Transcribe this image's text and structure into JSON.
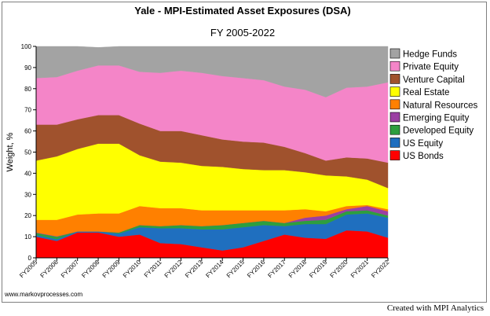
{
  "chart_data": {
    "type": "area",
    "stacked": true,
    "title": "Yale - MPI-Estimated Asset Exposures (DSA)",
    "subtitle": "FY 2005-2022",
    "ylabel": "Weight, %",
    "xlabel": "",
    "ylim": [
      0,
      100
    ],
    "yticks": [
      0,
      10,
      20,
      30,
      40,
      50,
      60,
      70,
      80,
      90,
      100
    ],
    "grid": false,
    "legend_position": "right",
    "categories": [
      "FY2005",
      "FY2006",
      "FY2007",
      "FY2008",
      "FY2009",
      "FY2010",
      "FY2011",
      "FY2012",
      "FY2013",
      "FY2014",
      "FY2015",
      "FY2016",
      "FY2017",
      "FY2018",
      "FY2019",
      "FY2020",
      "FY2021",
      "FY2022"
    ],
    "series": [
      {
        "name": "US Bonds",
        "color": "#ff0000",
        "values": [
          10,
          8,
          12,
          12,
          10,
          11,
          7,
          6.5,
          5,
          3.5,
          5,
          8,
          11,
          9.5,
          9,
          13,
          12.5,
          9.5
        ]
      },
      {
        "name": "US Equity",
        "color": "#1f6fbf",
        "values": [
          0.8,
          0.8,
          0.5,
          0.5,
          1.5,
          3.5,
          7,
          7.5,
          8.5,
          10,
          9.5,
          7.5,
          4,
          6.5,
          7,
          7.5,
          8.5,
          9.5
        ]
      },
      {
        "name": "Developed Equity",
        "color": "#2e9e3e",
        "values": [
          1,
          1.2,
          0,
          0,
          0.5,
          1,
          1,
          1.5,
          1.5,
          2,
          2,
          2,
          1.5,
          1.5,
          2,
          1.5,
          1.5,
          1
        ]
      },
      {
        "name": "Emerging Equity",
        "color": "#9b3fa3",
        "values": [
          0.2,
          0.2,
          0,
          0,
          0,
          0,
          0,
          0,
          0,
          0,
          0,
          0,
          0,
          1.5,
          2,
          1,
          2,
          2
        ]
      },
      {
        "name": "Natural Resources",
        "color": "#ff8000",
        "values": [
          6,
          7.8,
          8,
          8.5,
          9,
          9,
          8.5,
          8,
          7.5,
          7,
          6,
          5,
          6,
          4,
          2,
          1.5,
          0.5,
          1
        ]
      },
      {
        "name": "Real Estate",
        "color": "#ffff00",
        "values": [
          28,
          30,
          31,
          33,
          33,
          24,
          22,
          21.5,
          21,
          20.5,
          19.5,
          19,
          19,
          17.5,
          17,
          14,
          12,
          10
        ]
      },
      {
        "name": "Venture Capital",
        "color": "#a0522d",
        "values": [
          17,
          15,
          14,
          13.5,
          13.5,
          15,
          14.5,
          15,
          14.5,
          13,
          13,
          13,
          11,
          9,
          7,
          9,
          10,
          12
        ]
      },
      {
        "name": "Private Equity",
        "color": "#f485c8",
        "values": [
          22,
          22.5,
          23,
          23.5,
          23.5,
          24.5,
          27.5,
          28.5,
          29.5,
          30,
          30,
          29.5,
          28.5,
          30,
          30,
          33,
          34,
          38
        ]
      },
      {
        "name": "Hedge Funds",
        "color": "#a3a3a3",
        "values": [
          15,
          14.5,
          11.5,
          8.5,
          9,
          12,
          12.5,
          11.5,
          12.5,
          14,
          15,
          16,
          19,
          20.5,
          24,
          19.5,
          19,
          17
        ]
      }
    ]
  },
  "footer": {
    "website": "www.markovprocesses.com",
    "credit": "Created with MPI Analytics"
  }
}
